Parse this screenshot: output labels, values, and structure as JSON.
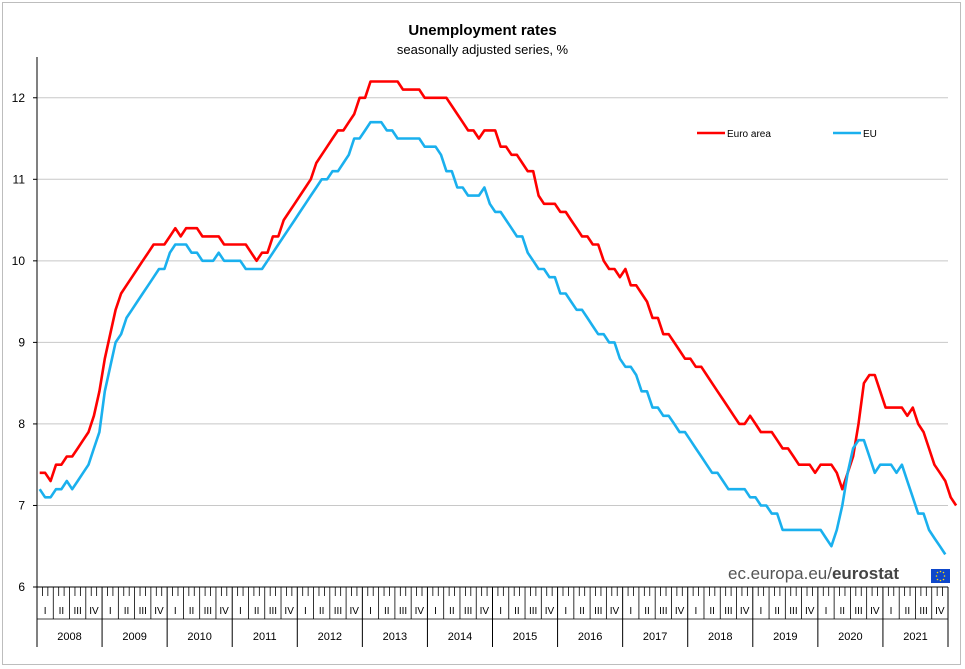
{
  "chart_data": {
    "type": "line",
    "title": "Unemployment rates",
    "subtitle": "seasonally adjusted series, %",
    "ylim": [
      6,
      12.5
    ],
    "yticks": [
      6,
      7,
      8,
      9,
      10,
      11,
      12
    ],
    "grid": true,
    "legend_position": "top-right",
    "x_start": "2008-01",
    "quarter_labels": [
      "I",
      "II",
      "III",
      "IV"
    ],
    "years": [
      "2008",
      "2009",
      "2010",
      "2011",
      "2012",
      "2013",
      "2014",
      "2015",
      "2016",
      "2017",
      "2018",
      "2019",
      "2020",
      "2021"
    ],
    "series": [
      {
        "name": "Euro area",
        "color": "#ff0000",
        "values": [
          7.4,
          7.4,
          7.3,
          7.5,
          7.5,
          7.6,
          7.6,
          7.7,
          7.8,
          7.9,
          8.1,
          8.4,
          8.8,
          9.1,
          9.4,
          9.6,
          9.7,
          9.8,
          9.9,
          10.0,
          10.1,
          10.2,
          10.2,
          10.2,
          10.3,
          10.4,
          10.3,
          10.4,
          10.4,
          10.4,
          10.3,
          10.3,
          10.3,
          10.3,
          10.2,
          10.2,
          10.2,
          10.2,
          10.2,
          10.1,
          10.0,
          10.1,
          10.1,
          10.3,
          10.3,
          10.5,
          10.6,
          10.7,
          10.8,
          10.9,
          11.0,
          11.2,
          11.3,
          11.4,
          11.5,
          11.6,
          11.6,
          11.7,
          11.8,
          12.0,
          12.0,
          12.2,
          12.2,
          12.2,
          12.2,
          12.2,
          12.2,
          12.1,
          12.1,
          12.1,
          12.1,
          12.0,
          12.0,
          12.0,
          12.0,
          12.0,
          11.9,
          11.8,
          11.7,
          11.6,
          11.6,
          11.5,
          11.6,
          11.6,
          11.6,
          11.4,
          11.4,
          11.3,
          11.3,
          11.2,
          11.1,
          11.1,
          10.8,
          10.7,
          10.7,
          10.7,
          10.6,
          10.6,
          10.5,
          10.4,
          10.3,
          10.3,
          10.2,
          10.2,
          10.0,
          9.9,
          9.9,
          9.8,
          9.9,
          9.7,
          9.7,
          9.6,
          9.5,
          9.3,
          9.3,
          9.1,
          9.1,
          9.0,
          8.9,
          8.8,
          8.8,
          8.7,
          8.7,
          8.6,
          8.5,
          8.4,
          8.3,
          8.2,
          8.1,
          8.0,
          8.0,
          8.1,
          8.0,
          7.9,
          7.9,
          7.9,
          7.8,
          7.7,
          7.7,
          7.6,
          7.5,
          7.5,
          7.5,
          7.4,
          7.5,
          7.5,
          7.5,
          7.4,
          7.2,
          7.4,
          7.6,
          8.0,
          8.5,
          8.6,
          8.6,
          8.4,
          8.2,
          8.2,
          8.2,
          8.2,
          8.1,
          8.2,
          8.0,
          7.9,
          7.7,
          7.5,
          7.4,
          7.3,
          7.1,
          7.0
        ]
      },
      {
        "name": "EU",
        "color": "#1ab0ee",
        "values": [
          7.2,
          7.1,
          7.1,
          7.2,
          7.2,
          7.3,
          7.2,
          7.3,
          7.4,
          7.5,
          7.7,
          7.9,
          8.4,
          8.7,
          9.0,
          9.1,
          9.3,
          9.4,
          9.5,
          9.6,
          9.7,
          9.8,
          9.9,
          9.9,
          10.1,
          10.2,
          10.2,
          10.2,
          10.1,
          10.1,
          10.0,
          10.0,
          10.0,
          10.1,
          10.0,
          10.0,
          10.0,
          10.0,
          9.9,
          9.9,
          9.9,
          9.9,
          10.0,
          10.1,
          10.2,
          10.3,
          10.4,
          10.5,
          10.6,
          10.7,
          10.8,
          10.9,
          11.0,
          11.0,
          11.1,
          11.1,
          11.2,
          11.3,
          11.5,
          11.5,
          11.6,
          11.7,
          11.7,
          11.7,
          11.6,
          11.6,
          11.5,
          11.5,
          11.5,
          11.5,
          11.5,
          11.4,
          11.4,
          11.4,
          11.3,
          11.1,
          11.1,
          10.9,
          10.9,
          10.8,
          10.8,
          10.8,
          10.9,
          10.7,
          10.6,
          10.6,
          10.5,
          10.4,
          10.3,
          10.3,
          10.1,
          10.0,
          9.9,
          9.9,
          9.8,
          9.8,
          9.6,
          9.6,
          9.5,
          9.4,
          9.4,
          9.3,
          9.2,
          9.1,
          9.1,
          9.0,
          9.0,
          8.8,
          8.7,
          8.7,
          8.6,
          8.4,
          8.4,
          8.2,
          8.2,
          8.1,
          8.1,
          8.0,
          7.9,
          7.9,
          7.8,
          7.7,
          7.6,
          7.5,
          7.4,
          7.4,
          7.3,
          7.2,
          7.2,
          7.2,
          7.2,
          7.1,
          7.1,
          7.0,
          7.0,
          6.9,
          6.9,
          6.7,
          6.7,
          6.7,
          6.7,
          6.7,
          6.7,
          6.7,
          6.7,
          6.6,
          6.5,
          6.7,
          7.0,
          7.4,
          7.7,
          7.8,
          7.8,
          7.6,
          7.4,
          7.5,
          7.5,
          7.5,
          7.4,
          7.5,
          7.3,
          7.1,
          6.9,
          6.9,
          6.7,
          6.6,
          6.5,
          6.4
        ]
      }
    ]
  },
  "source": {
    "prefix": "ec.europa.eu/",
    "brand": "eurostat"
  },
  "colors": {
    "grid": "#c8c8c8",
    "axis": "#000000",
    "flag": "#0e47cb"
  }
}
